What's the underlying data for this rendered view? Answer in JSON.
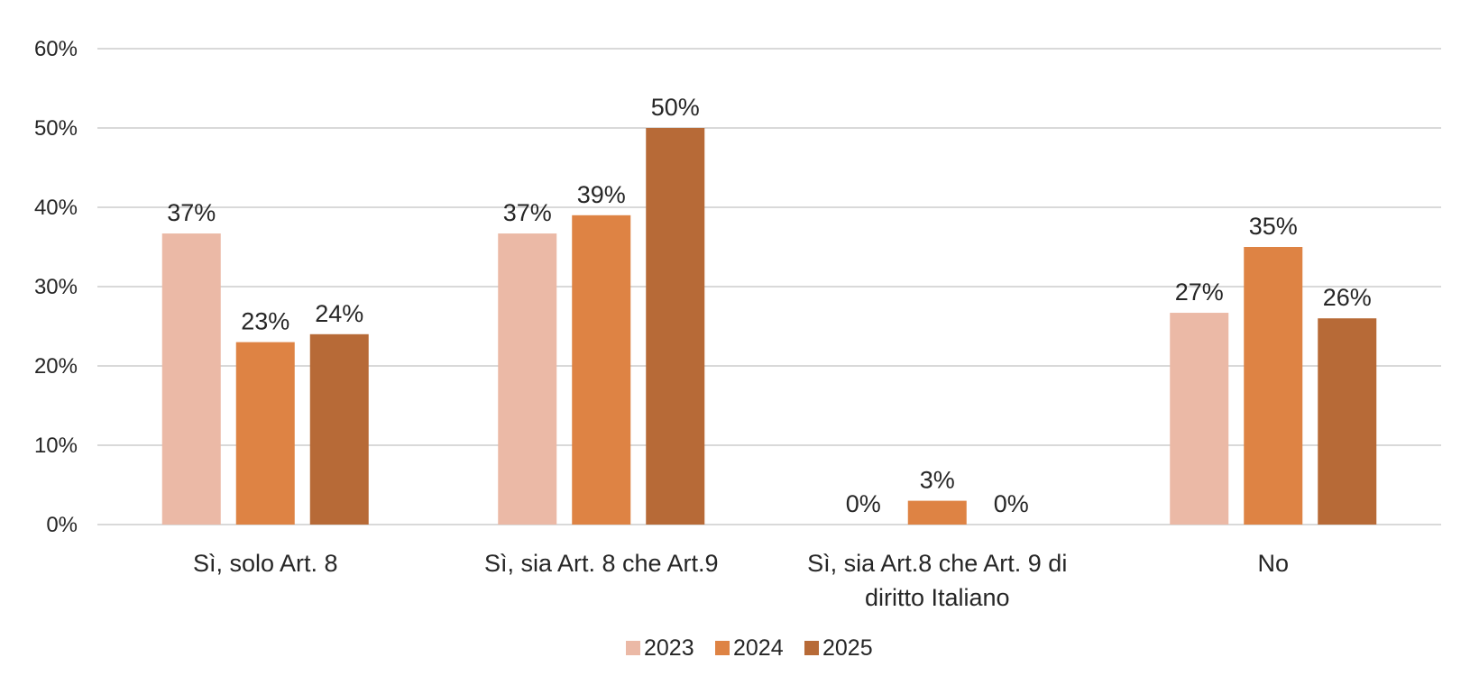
{
  "chart_data": {
    "type": "bar",
    "title": "",
    "xlabel": "",
    "ylabel": "",
    "ylim": [
      0,
      60
    ],
    "yticks": [
      "0%",
      "10%",
      "20%",
      "30%",
      "40%",
      "50%",
      "60%"
    ],
    "grid": true,
    "legend_position": "bottom",
    "categories": [
      [
        "Sì, solo Art. 8"
      ],
      [
        "Sì, sia Art. 8 che Art.9"
      ],
      [
        "Sì, sia Art.8 che Art. 9 di",
        "diritto Italiano"
      ],
      [
        "No"
      ]
    ],
    "series": [
      {
        "name": "2023",
        "color": "#EBB9A6",
        "values": [
          36.7,
          36.7,
          0,
          26.7
        ],
        "labels": [
          "37%",
          "37%",
          "0%",
          "27%"
        ]
      },
      {
        "name": "2024",
        "color": "#DE8344",
        "values": [
          23,
          39,
          3,
          35
        ],
        "labels": [
          "23%",
          "39%",
          "3%",
          "35%"
        ]
      },
      {
        "name": "2025",
        "color": "#B76A37",
        "values": [
          24,
          50,
          0,
          26
        ],
        "labels": [
          "24%",
          "50%",
          "0%",
          "26%"
        ]
      }
    ]
  }
}
